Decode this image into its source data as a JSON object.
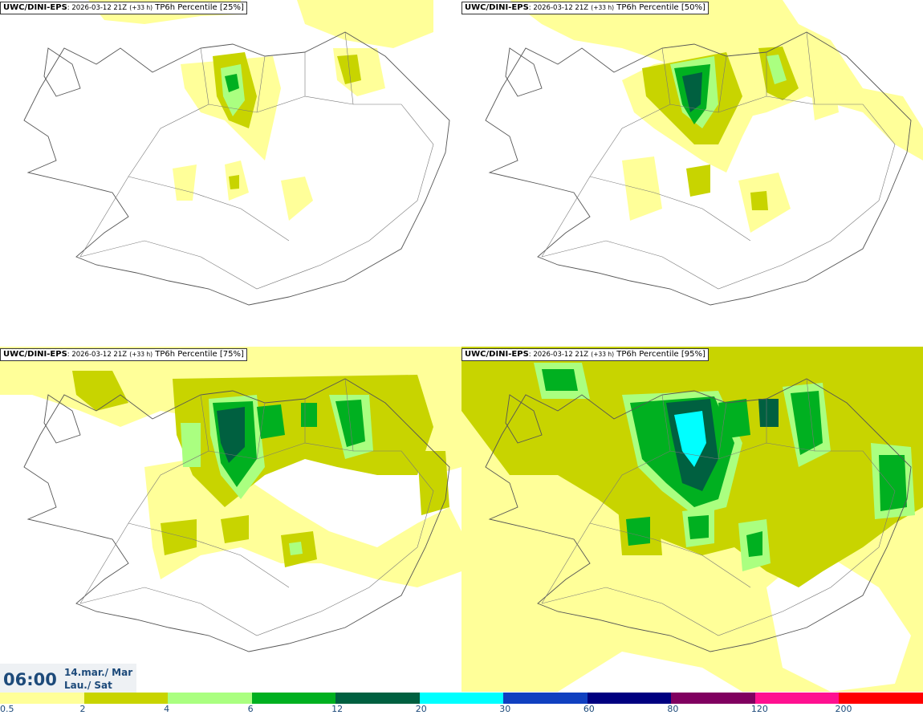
{
  "panels": [
    {
      "model": "UWC/DINI-EPS",
      "run": ": 2026-03-12 21Z",
      "lead": "(+33 h)",
      "param": "TP6h Percentile [25%]"
    },
    {
      "model": "UWC/DINI-EPS",
      "run": ": 2026-03-12 21Z",
      "lead": "(+33 h)",
      "param": "TP6h Percentile [50%]"
    },
    {
      "model": "UWC/DINI-EPS",
      "run": ": 2026-03-12 21Z",
      "lead": "(+33 h)",
      "param": "TP6h Percentile [75%]"
    },
    {
      "model": "UWC/DINI-EPS",
      "run": ": 2026-03-12 21Z",
      "lead": "(+33 h)",
      "param": "TP6h Percentile [95%]"
    }
  ],
  "valid_time": {
    "time": "06:00",
    "date_line1": "14.mar./ Mar",
    "date_line2": "Lau./ Sat"
  },
  "legend": {
    "ticks": [
      "0.5",
      "2",
      "4",
      "6",
      "12",
      "20",
      "30",
      "60",
      "80",
      "120",
      "200"
    ],
    "colors": [
      "#ffff99",
      "#c8d400",
      "#aaff80",
      "#00b020",
      "#006040",
      "#00ffff",
      "#1040c0",
      "#000080",
      "#800060",
      "#ff1090",
      "#ff0000"
    ]
  },
  "map_colors": {
    "land_outline": "#555555",
    "roads": "#777777"
  }
}
